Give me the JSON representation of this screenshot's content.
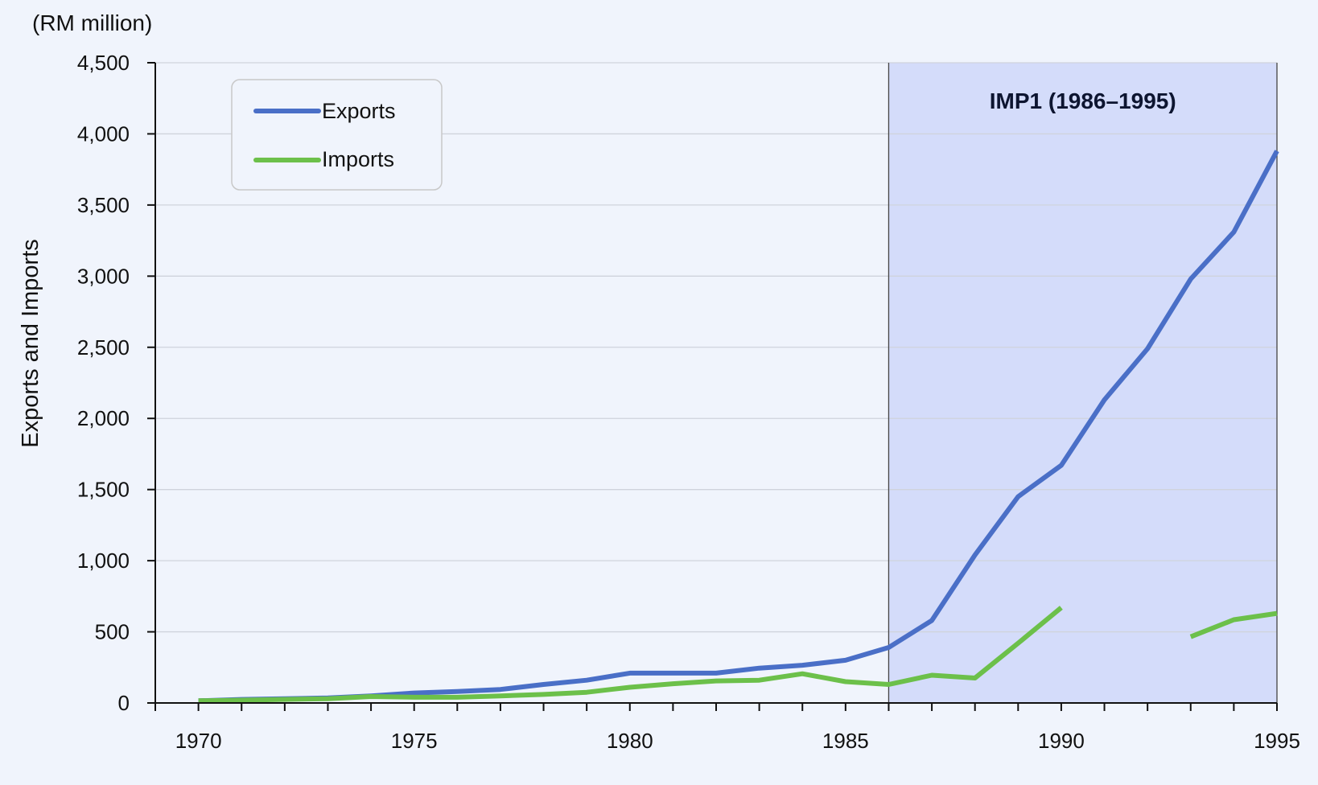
{
  "chart_data": {
    "type": "line",
    "title": "",
    "unit_label": "(RM million)",
    "xlabel": "",
    "ylabel": "Exports and Imports",
    "xlim": [
      1969,
      1995
    ],
    "ylim": [
      0,
      4500
    ],
    "x_ticks": [
      1970,
      1975,
      1980,
      1985,
      1990,
      1995
    ],
    "y_ticks": [
      "0",
      "500",
      "1,000",
      "1,500",
      "2,000",
      "2,500",
      "3,000",
      "3,500",
      "4,000",
      "4,500"
    ],
    "y_tick_values": [
      0,
      500,
      1000,
      1500,
      2000,
      2500,
      3000,
      3500,
      4000,
      4500
    ],
    "grid": true,
    "legend_position": "top-left",
    "x": [
      1970,
      1971,
      1972,
      1973,
      1974,
      1975,
      1976,
      1977,
      1978,
      1979,
      1980,
      1981,
      1982,
      1983,
      1984,
      1985,
      1986,
      1987,
      1988,
      1989,
      1990,
      1991,
      1992,
      1993,
      1994,
      1995
    ],
    "series": [
      {
        "name": "Exports",
        "color": "#4a6fc7",
        "values": [
          15,
          25,
          30,
          35,
          50,
          70,
          80,
          95,
          130,
          160,
          210,
          210,
          210,
          245,
          265,
          300,
          390,
          580,
          1040,
          1450,
          1670,
          2130,
          2490,
          2980,
          3310,
          3880
        ]
      },
      {
        "name": "Imports",
        "color": "#6cc04a",
        "values": [
          15,
          20,
          25,
          30,
          45,
          40,
          40,
          50,
          60,
          75,
          110,
          135,
          155,
          160,
          205,
          150,
          130,
          195,
          175,
          420,
          670,
          null,
          null,
          465,
          585,
          630
        ]
      }
    ],
    "shaded_region": {
      "label": "IMP1 (1986–1995)",
      "x_start": 1986,
      "x_end": 1995,
      "color": "#d4dcfa"
    }
  }
}
